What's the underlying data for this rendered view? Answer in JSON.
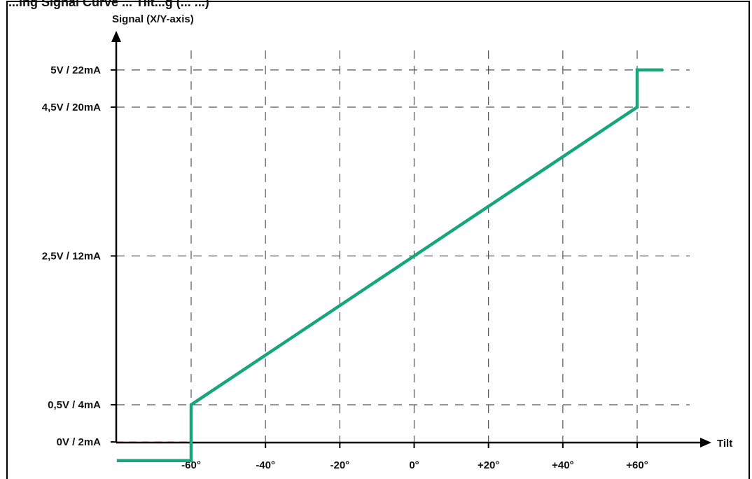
{
  "header_text": "...ing Signal Curve ... Tilt...g (... ...)",
  "chart_data": {
    "type": "line",
    "ylabel": "Signal (X/Y-axis)",
    "xlabel": "Tilt",
    "x_ticks": [
      "-60°",
      "-40°",
      "-20°",
      "0°",
      "+20°",
      "+40°",
      "+60°"
    ],
    "x_tick_values": [
      -60,
      -40,
      -20,
      0,
      20,
      40,
      60
    ],
    "y_ticks": [
      "0V / 2mA",
      "0,5V / 4mA",
      "2,5V / 12mA",
      "4,5V / 20mA",
      "5V / 22mA"
    ],
    "y_tick_values": [
      0,
      0.5,
      2.5,
      4.5,
      5
    ],
    "xlim": [
      -80,
      70
    ],
    "ylim": [
      -0.25,
      5.3
    ],
    "grid": true,
    "series": [
      {
        "color": "#17a57c",
        "points": [
          [
            -80,
            -0.25
          ],
          [
            -60,
            -0.25
          ],
          [
            -60,
            0.5
          ],
          [
            60,
            4.5
          ],
          [
            60,
            5
          ],
          [
            67,
            5
          ]
        ]
      }
    ],
    "reference_line": {
      "y": 0,
      "x_range": [
        -80,
        -60
      ],
      "color": "#e03030",
      "style": "dashed"
    }
  }
}
